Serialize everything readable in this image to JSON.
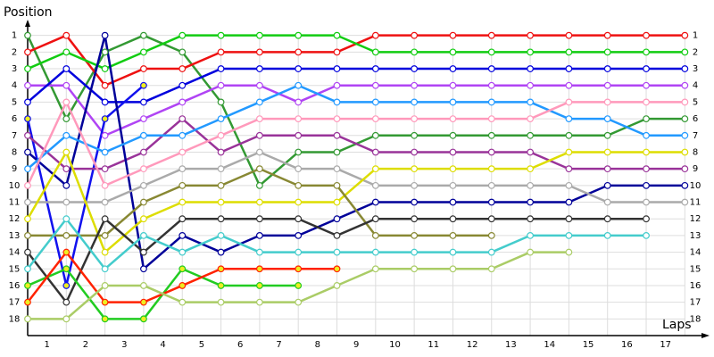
{
  "chart_data": {
    "type": "line",
    "y_label": "Position",
    "x_label": "Laps",
    "x": [
      0,
      1,
      2,
      3,
      4,
      5,
      6,
      7,
      8,
      9,
      10,
      11,
      12,
      13,
      14,
      15,
      16,
      17
    ],
    "xlim": [
      0,
      17.5
    ],
    "ylim": [
      0,
      19
    ],
    "y_inverted": true,
    "grid": true,
    "xticks": [
      {
        "value": 0.5,
        "label": "1"
      },
      {
        "value": 1.5,
        "label": "2"
      },
      {
        "value": 2.5,
        "label": "3"
      },
      {
        "value": 3.5,
        "label": "4"
      },
      {
        "value": 4.5,
        "label": "5"
      },
      {
        "value": 5.5,
        "label": "6"
      },
      {
        "value": 6.5,
        "label": "7"
      },
      {
        "value": 7.5,
        "label": "8"
      },
      {
        "value": 8.5,
        "label": "9"
      },
      {
        "value": 9.5,
        "label": "10"
      },
      {
        "value": 10.5,
        "label": "11"
      },
      {
        "value": 11.5,
        "label": "12"
      },
      {
        "value": 12.5,
        "label": "13"
      },
      {
        "value": 13.5,
        "label": "14"
      },
      {
        "value": 14.5,
        "label": "15"
      },
      {
        "value": 15.5,
        "label": "16"
      },
      {
        "value": 16.5,
        "label": "17"
      }
    ],
    "yticks": [
      1,
      2,
      3,
      4,
      5,
      6,
      7,
      8,
      9,
      10,
      11,
      12,
      13,
      14,
      15,
      16,
      17,
      18
    ],
    "series": [
      {
        "color": "#339933",
        "marker_color": "#ffffff",
        "values": [
          1,
          6,
          2,
          1,
          2,
          5,
          10,
          8,
          8,
          7,
          7,
          7,
          7,
          7,
          7,
          7,
          6,
          6
        ]
      },
      {
        "color": "#ee1111",
        "marker_color": "#ffffff",
        "values": [
          2,
          1,
          4,
          3,
          3,
          2,
          2,
          2,
          2,
          1,
          1,
          1,
          1,
          1,
          1,
          1,
          1,
          1
        ]
      },
      {
        "color": "#11cc11",
        "marker_color": "#ffffff",
        "values": [
          3,
          2,
          3,
          2,
          1,
          1,
          1,
          1,
          1,
          2,
          2,
          2,
          2,
          2,
          2,
          2,
          2,
          2
        ]
      },
      {
        "color": "#b044f4",
        "marker_color": "#ffffff",
        "values": [
          4,
          4,
          7,
          6,
          5,
          4,
          4,
          5,
          4,
          4,
          4,
          4,
          4,
          4,
          4,
          4,
          4,
          4
        ]
      },
      {
        "color": "#0000dd",
        "marker_color": "#ffffff",
        "values": [
          5,
          3,
          5,
          5,
          4,
          3,
          3,
          3,
          3,
          3,
          3,
          3,
          3,
          3,
          3,
          3,
          3,
          3
        ]
      },
      {
        "color": "#1111ee",
        "marker_color": "#eeee22",
        "values": [
          6,
          16,
          6,
          4,
          null,
          null,
          null,
          null,
          null,
          null,
          null,
          null,
          null,
          null,
          null,
          null,
          null,
          null
        ]
      },
      {
        "color": "#993399",
        "marker_color": "#ffffff",
        "values": [
          7,
          9,
          9,
          8,
          6,
          8,
          7,
          7,
          7,
          8,
          8,
          8,
          8,
          8,
          9,
          9,
          9,
          9
        ]
      },
      {
        "color": "#000099",
        "marker_color": "#ffffff",
        "values": [
          8,
          10,
          1,
          15,
          13,
          14,
          13,
          13,
          12,
          11,
          11,
          11,
          11,
          11,
          11,
          10,
          10,
          10
        ]
      },
      {
        "color": "#2299ff",
        "marker_color": "#ffffff",
        "values": [
          9,
          7,
          8,
          7,
          7,
          6,
          5,
          4,
          5,
          5,
          5,
          5,
          5,
          5,
          6,
          6,
          7,
          7
        ]
      },
      {
        "color": "#ff99bb",
        "marker_color": "#ffffff",
        "values": [
          10,
          5,
          10,
          9,
          8,
          7,
          6,
          6,
          6,
          6,
          6,
          6,
          6,
          6,
          5,
          5,
          5,
          5
        ]
      },
      {
        "color": "#aaaaaa",
        "marker_color": "#ffffff",
        "values": [
          11,
          11,
          11,
          10,
          9,
          9,
          8,
          9,
          9,
          10,
          10,
          10,
          10,
          10,
          10,
          11,
          11,
          11
        ]
      },
      {
        "color": "#dddd00",
        "marker_color": "#ffffff",
        "values": [
          12,
          8,
          14,
          12,
          11,
          11,
          11,
          11,
          11,
          9,
          9,
          9,
          9,
          9,
          8,
          8,
          8,
          8
        ]
      },
      {
        "color": "#888833",
        "marker_color": "#ffffff",
        "values": [
          13,
          13,
          13,
          11,
          10,
          10,
          9,
          10,
          10,
          13,
          13,
          13,
          13,
          null,
          null,
          null,
          null,
          null
        ]
      },
      {
        "color": "#333333",
        "marker_color": "#ffffff",
        "values": [
          14,
          17,
          12,
          14,
          12,
          12,
          12,
          12,
          13,
          12,
          12,
          12,
          12,
          12,
          12,
          12,
          12,
          null
        ]
      },
      {
        "color": "#44cccc",
        "marker_color": "#ffffff",
        "values": [
          15,
          12,
          15,
          13,
          14,
          13,
          14,
          14,
          14,
          14,
          14,
          14,
          14,
          13,
          13,
          13,
          13,
          null
        ]
      },
      {
        "color": "#22cc22",
        "marker_color": "#eeee22",
        "values": [
          16,
          15,
          18,
          18,
          15,
          16,
          16,
          16,
          null,
          null,
          null,
          null,
          null,
          null,
          null,
          null,
          null,
          null
        ]
      },
      {
        "color": "#ff2200",
        "marker_color": "#eeee22",
        "values": [
          17,
          14,
          17,
          17,
          16,
          15,
          15,
          15,
          15,
          null,
          null,
          null,
          null,
          null,
          null,
          null,
          null,
          null
        ]
      },
      {
        "color": "#aacc66",
        "marker_color": "#ffffff",
        "values": [
          18,
          18,
          16,
          16,
          17,
          17,
          17,
          17,
          16,
          15,
          15,
          15,
          15,
          14,
          14,
          null,
          null,
          null
        ]
      }
    ]
  }
}
